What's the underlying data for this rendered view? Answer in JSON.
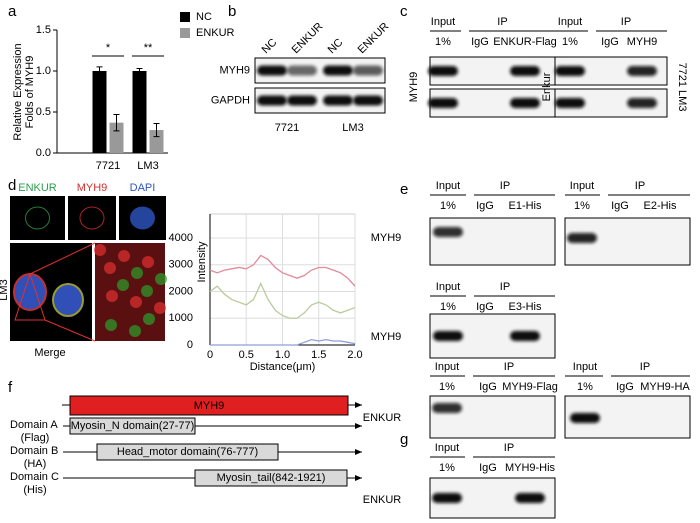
{
  "panel_labels": [
    "a",
    "b",
    "c",
    "d",
    "e",
    "f",
    "g"
  ],
  "chart_data": [
    {
      "type": "bar",
      "ylabel": [
        "Relative Expression",
        "Folds of MYH9"
      ],
      "categories": [
        "7721",
        "LM3"
      ],
      "series": [
        {
          "name": "NC",
          "color": "#000000",
          "values": [
            1.0,
            1.0
          ],
          "errors": [
            0.05,
            0.03
          ]
        },
        {
          "name": "ENKUR",
          "color": "#999999",
          "values": [
            0.37,
            0.28
          ],
          "errors": [
            0.1,
            0.08
          ]
        }
      ],
      "significance": [
        "*",
        "**"
      ],
      "ylim": [
        0,
        1.5
      ],
      "yticks": [
        {
          "value": 0,
          "label": "0.0"
        },
        0.5,
        {
          "value": 1,
          "label": "1.0"
        },
        1.5
      ]
    },
    {
      "type": "line",
      "xlabel": "Distance(μm)",
      "ylabel": "Intensity",
      "x": [
        0,
        0.1,
        0.2,
        0.3,
        0.4,
        0.5,
        0.6,
        0.7,
        0.8,
        0.9,
        1.0,
        1.1,
        1.2,
        1.3,
        1.4,
        1.5,
        1.6,
        1.7,
        1.8,
        1.9,
        2.0
      ],
      "series": [
        {
          "color": "#e38a9a",
          "values": [
            2800,
            2700,
            2800,
            2850,
            2900,
            2850,
            3000,
            3350,
            3200,
            2900,
            2700,
            2600,
            2500,
            2600,
            2800,
            2900,
            2900,
            2800,
            2700,
            2500,
            2200
          ]
        },
        {
          "color": "#b9cc9c",
          "values": [
            2000,
            2200,
            1900,
            1700,
            1600,
            1500,
            1700,
            2300,
            1700,
            1300,
            1100,
            1000,
            1000,
            1200,
            1500,
            1600,
            1500,
            1300,
            1200,
            1300,
            1400
          ]
        },
        {
          "color": "#8f9fdc",
          "values": [
            0,
            0,
            0,
            0,
            0,
            0,
            0,
            0,
            0,
            0,
            0,
            0,
            0,
            100,
            200,
            150,
            200,
            150,
            150,
            100,
            50
          ]
        }
      ],
      "xlim": [
        0,
        2
      ],
      "ylim": [
        0,
        4900
      ],
      "xticks": [
        0,
        0.5,
        {
          "value": 1,
          "label": "1.0"
        },
        1.5,
        {
          "value": 2,
          "label": "2.0"
        }
      ],
      "yticks": [
        0,
        1000,
        2000,
        3000,
        4000
      ],
      "grid": true
    }
  ],
  "panel_b": {
    "lanes": [
      "NC",
      "ENKUR",
      "NC",
      "ENKUR"
    ],
    "rows": [
      "MYH9",
      "GAPDH"
    ],
    "cell_lines": [
      "7721",
      "LM3"
    ]
  },
  "panel_c": {
    "blots": [
      {
        "header": [
          "Input",
          "IP"
        ],
        "lanes": [
          "1%",
          "IgG",
          "ENKUR-Flag"
        ],
        "row": "MYH9"
      },
      {
        "header": [
          "Input",
          "IP"
        ],
        "lanes": [
          "1%",
          "IgG",
          "MYH9"
        ],
        "row": "Enkur"
      }
    ],
    "cell_lines": "7721 LM3"
  },
  "panel_d": {
    "channels": [
      "ENKUR",
      "MYH9",
      "DAPI"
    ],
    "cell_line": "LM3",
    "merge": "Merge"
  },
  "panel_e": {
    "blots": [
      {
        "header": [
          "Input",
          "IP"
        ],
        "lanes": [
          "1%",
          "IgG",
          "E1-His"
        ],
        "row": "MYH9"
      },
      {
        "header": [
          "Input",
          "IP"
        ],
        "lanes": [
          "1%",
          "IgG",
          "E2-His"
        ]
      },
      {
        "header": [
          "Input",
          "IP"
        ],
        "lanes": [
          "1%",
          "IgG",
          "E3-His"
        ],
        "row": "MYH9"
      }
    ]
  },
  "panel_f": {
    "protein": "MYH9",
    "domains": [
      {
        "name": "Domain A",
        "tag": "(Flag)",
        "label": "Myosin_N domain(27-77)"
      },
      {
        "name": "Domain B",
        "tag": "(HA)",
        "label": "Head_motor domain(76-777)"
      },
      {
        "name": "Domain C",
        "tag": "(His)",
        "label": "Myosin_tail(842-1921)"
      }
    ]
  },
  "panel_g": {
    "blots": [
      {
        "header": [
          "Input",
          "IP"
        ],
        "lanes": [
          "1%",
          "IgG",
          "MYH9-Flag"
        ],
        "row": "ENKUR"
      },
      {
        "header": [
          "Input",
          "IP"
        ],
        "lanes": [
          "1%",
          "IgG",
          "MYH9-HA"
        ]
      },
      {
        "header": [
          "Input",
          "IP"
        ],
        "lanes": [
          "1%",
          "IgG",
          "MYH9-His"
        ],
        "row": "ENKUR"
      }
    ]
  }
}
